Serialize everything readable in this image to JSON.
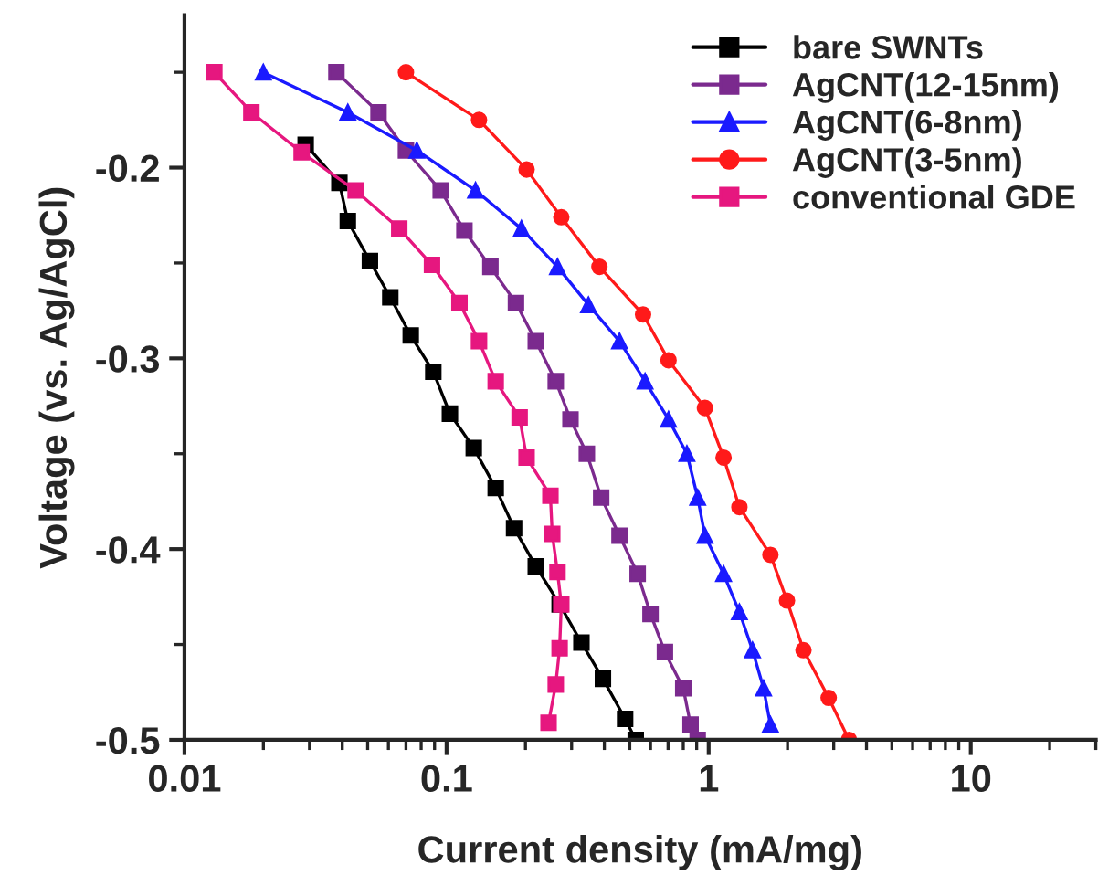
{
  "chart_data": {
    "type": "line",
    "xlabel": "Current density (mA/mg)",
    "ylabel": "Voltage (vs. Ag/AgCl)",
    "log": "x",
    "xlim": [
      0.01,
      30
    ],
    "xticks": [
      0.01,
      0.1,
      1,
      10
    ],
    "ylim": [
      -0.5,
      -0.12
    ],
    "yticks": [
      -0.5,
      {
        "value": -0.45,
        "label": null
      },
      -0.4,
      {
        "value": -0.35,
        "label": null
      },
      -0.3,
      {
        "value": -0.25,
        "label": null
      },
      -0.2,
      {
        "value": -0.15,
        "label": null
      }
    ],
    "grid": false,
    "legend": "top right",
    "line_style": "solid",
    "series": [
      {
        "name": "bare SWNTs",
        "color": "#000000",
        "marker": "square",
        "x": [
          0.029,
          0.039,
          0.042,
          0.051,
          0.061,
          0.073,
          0.089,
          0.103,
          0.127,
          0.154,
          0.181,
          0.219,
          0.27,
          0.327,
          0.395,
          0.48,
          0.527
        ],
        "values": [
          -0.188,
          -0.208,
          -0.228,
          -0.249,
          -0.268,
          -0.288,
          -0.307,
          -0.329,
          -0.347,
          -0.368,
          -0.389,
          -0.409,
          -0.429,
          -0.449,
          -0.468,
          -0.489,
          -0.5
        ]
      },
      {
        "name": "AgCNT(12-15nm)",
        "color": "#7b2a8e",
        "marker": "square",
        "x": [
          0.038,
          0.055,
          0.07,
          0.095,
          0.117,
          0.147,
          0.184,
          0.219,
          0.261,
          0.297,
          0.343,
          0.389,
          0.457,
          0.536,
          0.6,
          0.681,
          0.8,
          0.853,
          0.908
        ],
        "values": [
          -0.15,
          -0.171,
          -0.191,
          -0.212,
          -0.233,
          -0.252,
          -0.271,
          -0.291,
          -0.312,
          -0.332,
          -0.35,
          -0.373,
          -0.393,
          -0.413,
          -0.434,
          -0.454,
          -0.473,
          -0.492,
          -0.5
        ]
      },
      {
        "name": "AgCNT(6-8nm)",
        "color": "#1a1aff",
        "marker": "triangle",
        "x": [
          0.02,
          0.042,
          0.077,
          0.129,
          0.193,
          0.265,
          0.348,
          0.457,
          0.572,
          0.703,
          0.826,
          0.908,
          0.968,
          1.14,
          1.31,
          1.47,
          1.62,
          1.72
        ],
        "values": [
          -0.15,
          -0.171,
          -0.191,
          -0.212,
          -0.232,
          -0.252,
          -0.272,
          -0.291,
          -0.312,
          -0.332,
          -0.35,
          -0.373,
          -0.393,
          -0.413,
          -0.433,
          -0.453,
          -0.473,
          -0.492
        ]
      },
      {
        "name": "AgCNT(3-5nm)",
        "color": "#ff1a1a",
        "marker": "circle",
        "x": [
          0.07,
          0.133,
          0.202,
          0.274,
          0.383,
          0.562,
          0.703,
          0.968,
          1.14,
          1.31,
          1.72,
          1.99,
          2.3,
          2.87,
          3.43
        ],
        "values": [
          -0.15,
          -0.175,
          -0.201,
          -0.226,
          -0.252,
          -0.277,
          -0.301,
          -0.326,
          -0.352,
          -0.378,
          -0.403,
          -0.427,
          -0.453,
          -0.478,
          -0.5
        ]
      },
      {
        "name": "conventional GDE",
        "color": "#e6177f",
        "marker": "square",
        "x": [
          0.013,
          0.018,
          0.028,
          0.045,
          0.066,
          0.088,
          0.112,
          0.133,
          0.154,
          0.19,
          0.202,
          0.249,
          0.253,
          0.265,
          0.274,
          0.27,
          0.261,
          0.245
        ],
        "values": [
          -0.15,
          -0.171,
          -0.192,
          -0.212,
          -0.232,
          -0.251,
          -0.271,
          -0.291,
          -0.312,
          -0.331,
          -0.352,
          -0.372,
          -0.392,
          -0.412,
          -0.429,
          -0.452,
          -0.471,
          -0.491
        ]
      }
    ]
  }
}
